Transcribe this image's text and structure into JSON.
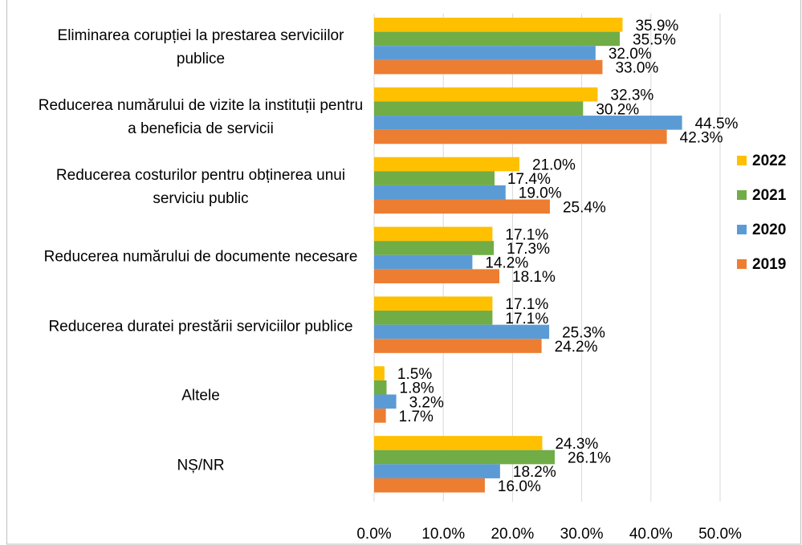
{
  "chart_data": {
    "type": "bar",
    "orientation": "horizontal",
    "categories": [
      "Eliminarea corupției la prestarea serviciilor publice",
      "Reducerea numărului de vizite la instituții pentru a beneficia de servicii",
      "Reducerea costurilor pentru obținerea unui serviciu public",
      "Reducerea numărului de documente necesare",
      "Reducerea duratei prestării serviciilor publice",
      "Altele",
      "NȘ/NR"
    ],
    "series": [
      {
        "name": "2022",
        "color": "#ffc000",
        "values": [
          35.9,
          32.3,
          21.0,
          17.1,
          17.1,
          1.5,
          24.3
        ],
        "value_labels": [
          "35.9%",
          "32.3%",
          "21.0%",
          "17.1%",
          "17.1%",
          "1.5%",
          "24.3%"
        ]
      },
      {
        "name": "2021",
        "color": "#70ad47",
        "values": [
          35.5,
          30.2,
          17.4,
          17.3,
          17.1,
          1.8,
          26.1
        ],
        "value_labels": [
          "35.5%",
          "30.2%",
          "17.4%",
          "17.3%",
          "17.1%",
          "1.8%",
          "26.1%"
        ]
      },
      {
        "name": "2020",
        "color": "#5b9bd5",
        "values": [
          32.0,
          44.5,
          19.0,
          14.2,
          25.3,
          3.2,
          18.2
        ],
        "value_labels": [
          "32.0%",
          "44.5%",
          "19.0%",
          "14.2%",
          "25.3%",
          "3.2%",
          "18.2%"
        ]
      },
      {
        "name": "2019",
        "color": "#ed7d31",
        "values": [
          33.0,
          42.3,
          25.4,
          18.1,
          24.2,
          1.7,
          16.0
        ],
        "value_labels": [
          "33.0%",
          "42.3%",
          "25.4%",
          "18.1%",
          "24.2%",
          "1.7%",
          "16.0%"
        ]
      }
    ],
    "xlim": [
      0,
      50
    ],
    "xticks": [
      {
        "value": 0,
        "label": "0.0%"
      },
      {
        "value": 10,
        "label": "10.0%"
      },
      {
        "value": 20,
        "label": "20.0%"
      },
      {
        "value": 30,
        "label": "30.0%"
      },
      {
        "value": 40,
        "label": "40.0%"
      },
      {
        "value": 50,
        "label": "50.0%"
      }
    ],
    "grid": true,
    "legend": "right"
  }
}
